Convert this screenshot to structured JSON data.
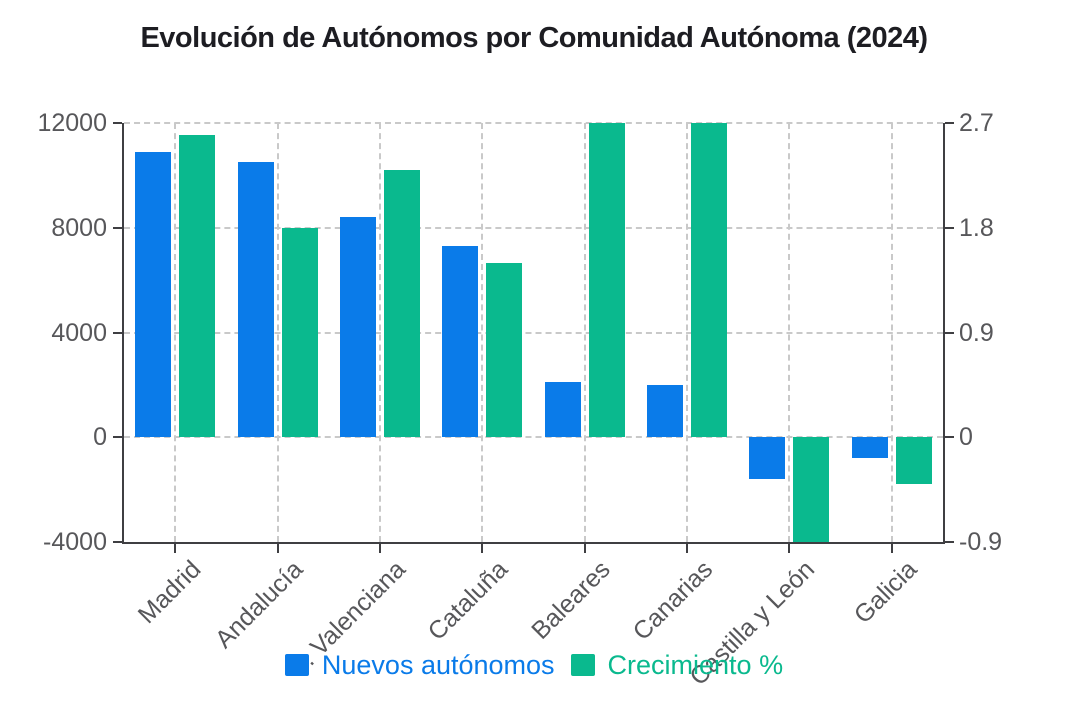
{
  "title": "Evolución de Autónomos por Comunidad Autónoma (2024)",
  "colors": {
    "blue_series": "#0a7be9",
    "green_series": "#0ab98e",
    "grid": "#c9c9c9",
    "axis": "#3f3f42",
    "tick_text": "#57575a",
    "title_text": "#1d1d22",
    "background": "#ffffff"
  },
  "chart_data": {
    "type": "bar",
    "title": "Evolución de Autónomos por Comunidad Autónoma (2024)",
    "categories": [
      "Madrid",
      "Andalucía",
      "C. Valenciana",
      "Cataluña",
      "Baleares",
      "Canarias",
      "Castilla y León",
      "Galicia"
    ],
    "series": [
      {
        "name": "Nuevos autónomos",
        "axis": "left",
        "color": "#0a7be9",
        "values": [
          10900,
          10500,
          8400,
          7300,
          2100,
          2000,
          -1600,
          -800
        ]
      },
      {
        "name": "Crecimiento %",
        "axis": "right",
        "color": "#0ab98e",
        "values": [
          2.6,
          1.8,
          2.3,
          1.5,
          2.7,
          2.7,
          -0.9,
          -0.4
        ]
      }
    ],
    "left_axis": {
      "range": [
        -4000,
        12000
      ],
      "ticks": [
        12000,
        8000,
        4000,
        0,
        -4000
      ]
    },
    "right_axis": {
      "range": [
        -0.9,
        2.7
      ],
      "ticks": [
        2.7,
        1.8,
        0.9,
        0,
        -0.9
      ]
    },
    "grid": true,
    "gridline_style": "dashed",
    "legend_position": "bottom",
    "xlabel": "",
    "ylabel": ""
  }
}
